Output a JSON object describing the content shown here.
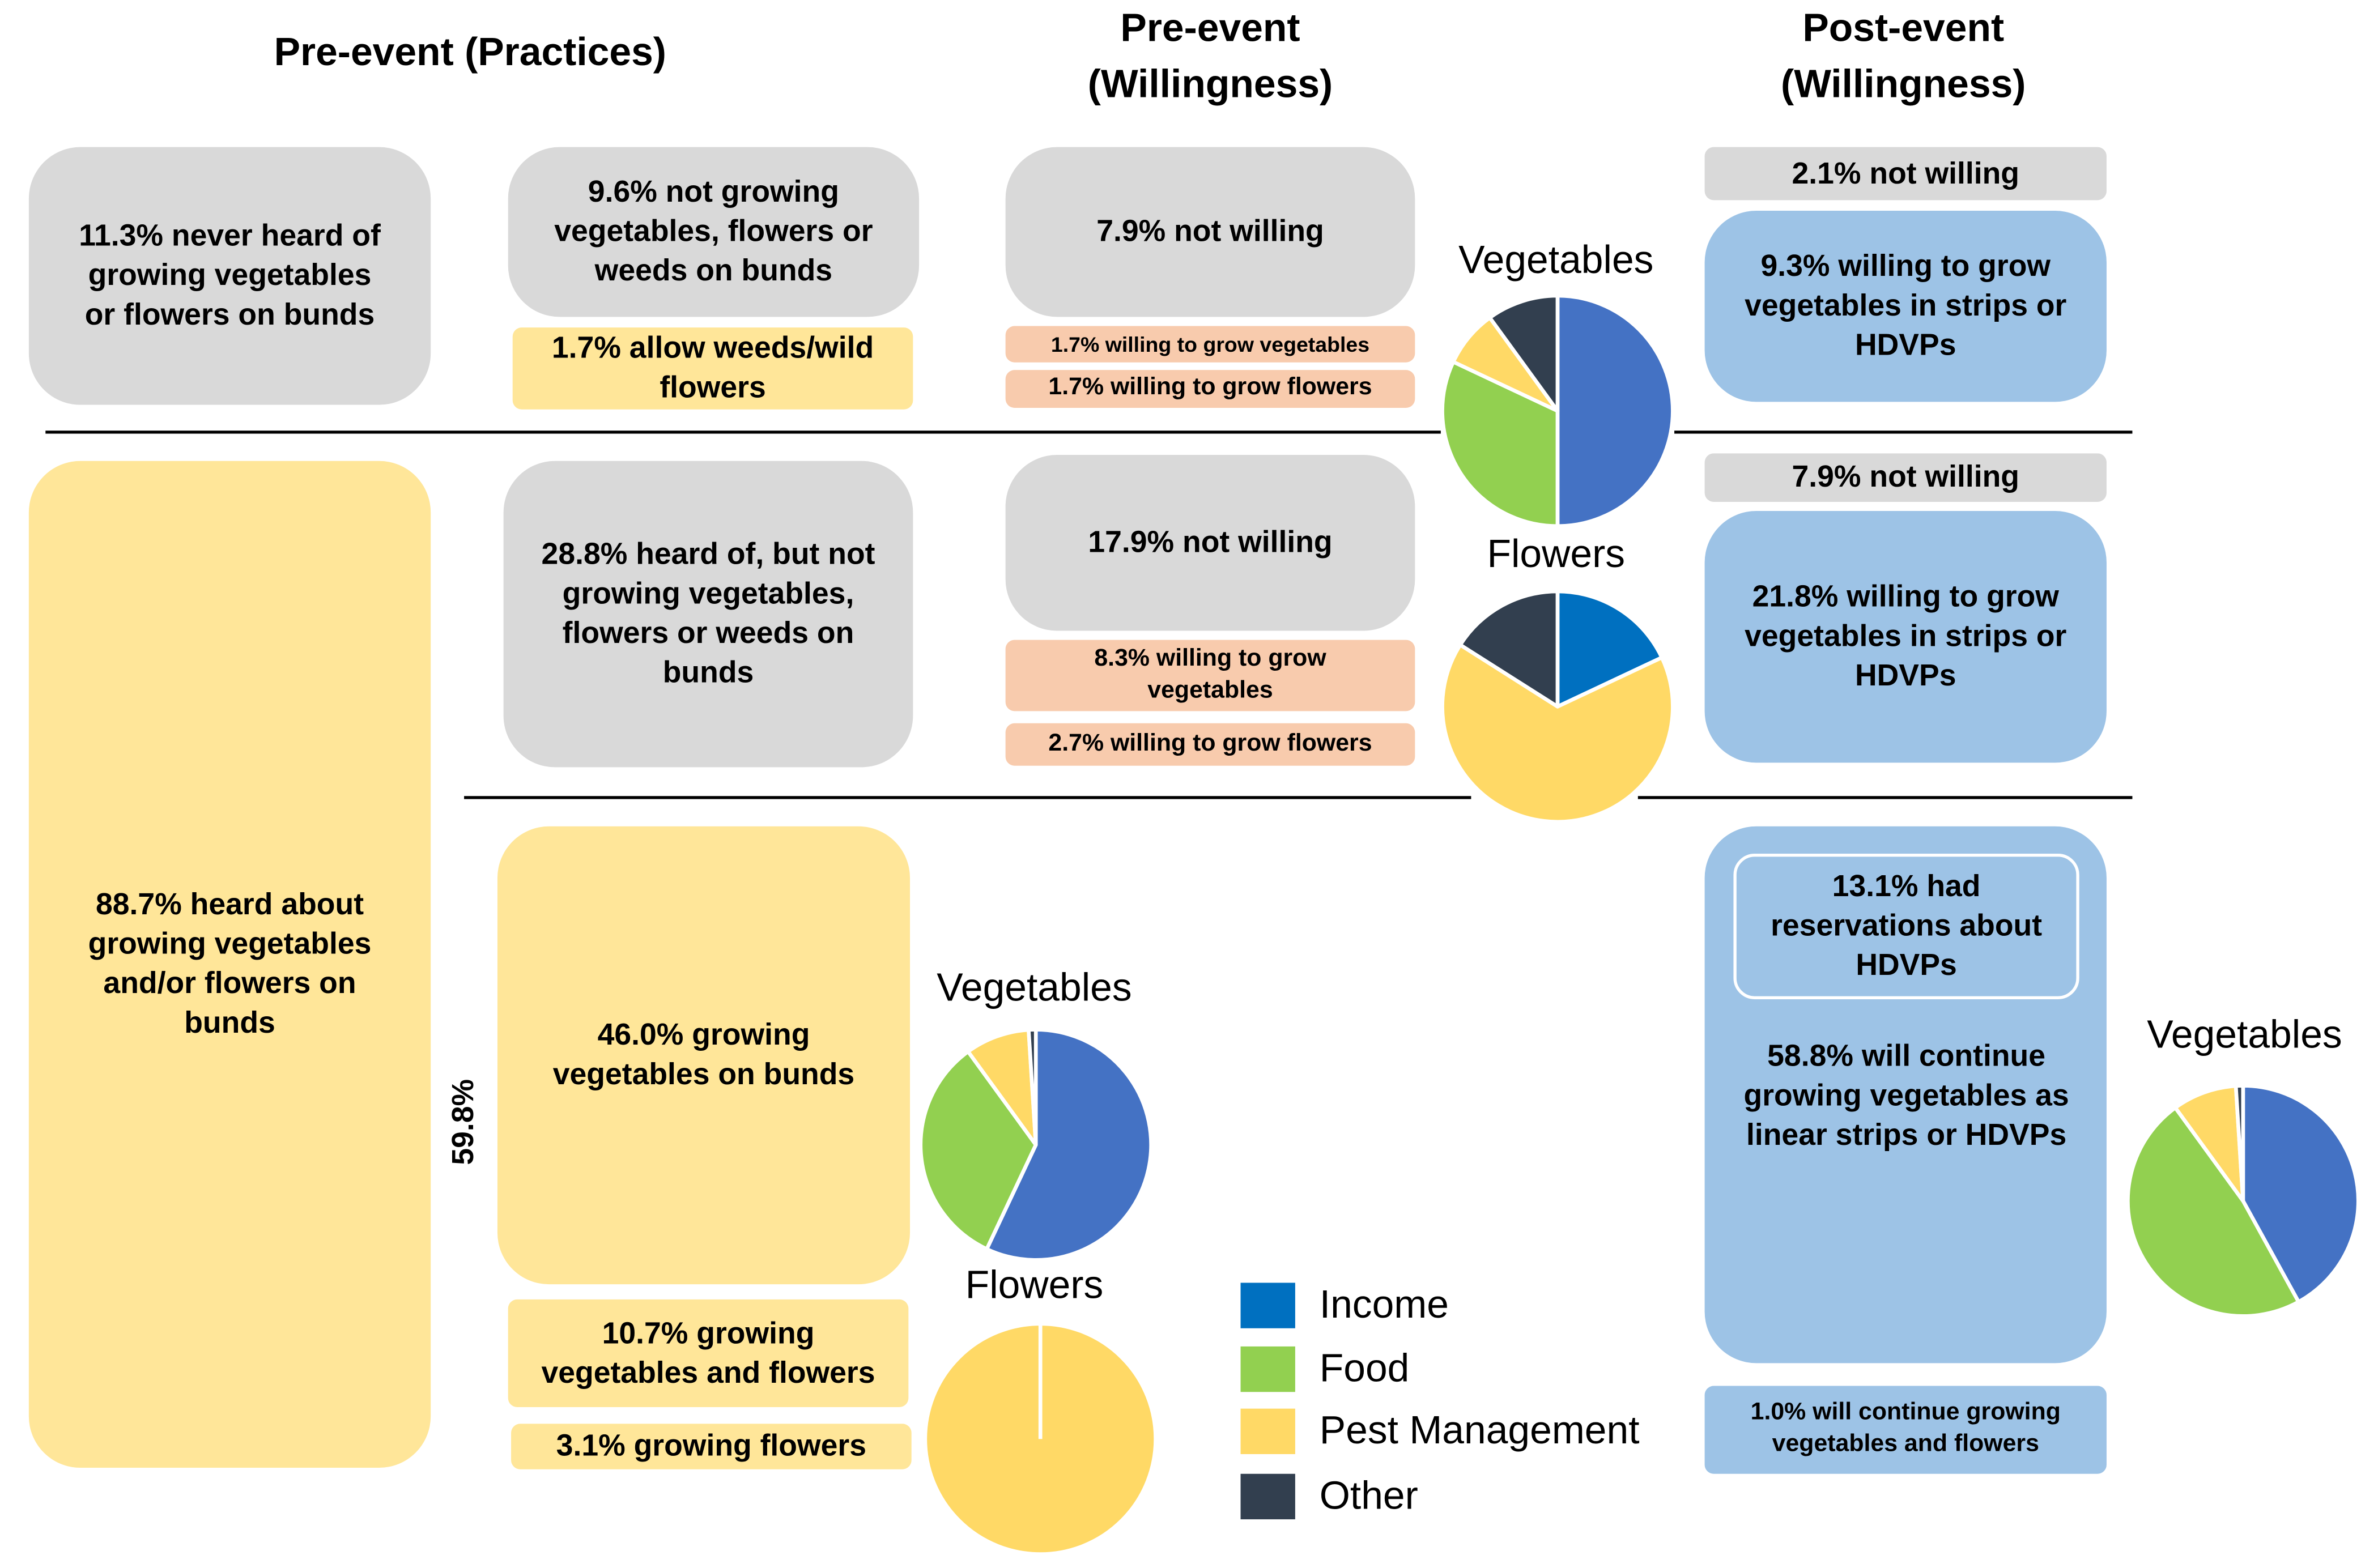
{
  "headers": {
    "practices": "Pre-event (Practices)",
    "pre_willingness": "Pre-event\n(Willingness)",
    "post_willingness": "Post-event\n(Willingness)"
  },
  "practices": {
    "never_heard": "11.3% never heard of growing vegetables or flowers on bunds",
    "heard_about": "88.7% heard about growing vegetables and/or flowers on bunds",
    "not_growing": "9.6% not growing vegetables, flowers or weeds on bunds",
    "allow_weeds": "1.7% allow weeds/wild flowers",
    "heard_not_growing": "28.8% heard of, but not growing vegetables, flowers or weeds on bunds",
    "growing_veg": "46.0% growing vegetables on bunds",
    "growing_veg_flowers": "10.7% growing vegetables and flowers",
    "growing_flowers": "3.1% growing flowers",
    "side_label": "59.8%"
  },
  "pre_willingness": {
    "not_willing_1": "7.9% not willing",
    "willing_veg_1": "1.7% willing to grow vegetables",
    "willing_flowers_1": "1.7% willing to grow flowers",
    "not_willing_2": "17.9% not willing",
    "willing_veg_2": "8.3% willing to grow vegetables",
    "willing_flowers_2": "2.7% willing to grow flowers"
  },
  "post_willingness": {
    "not_willing_1": "2.1% not willing",
    "willing_strips_1": "9.3% willing to grow vegetables in strips or HDVPs",
    "not_willing_2": "7.9% not willing",
    "willing_strips_2": "21.8% willing to grow vegetables in strips or HDVPs",
    "reservations": "13.1% had reservations about HDVPs",
    "continue_veg": "58.8% will continue growing vegetables as linear strips or HDVPs",
    "continue_veg_flowers": "1.0% will continue growing vegetables and flowers"
  },
  "colors": {
    "income": "#0070c0",
    "food": "#92d050",
    "pest": "#ffd966",
    "other": "#323f4f",
    "income_alt": "#4472c4"
  },
  "legend": [
    {
      "label": "Income",
      "color": "#0070c0"
    },
    {
      "label": "Food",
      "color": "#92d050"
    },
    {
      "label": "Pest Management",
      "color": "#ffd966"
    },
    {
      "label": "Other",
      "color": "#323f4f"
    }
  ],
  "chart_data": [
    {
      "type": "pie",
      "title": "Vegetables",
      "group": "pre-event willingness",
      "labels": [
        "Income",
        "Food",
        "Pest Management",
        "Other"
      ],
      "values": [
        50,
        32,
        8,
        10
      ],
      "colors": [
        "#4472c4",
        "#92d050",
        "#ffd966",
        "#323f4f"
      ]
    },
    {
      "type": "pie",
      "title": "Flowers",
      "group": "pre-event willingness",
      "labels": [
        "Income",
        "Food",
        "Pest Management",
        "Other"
      ],
      "values": [
        18,
        0,
        66,
        16
      ],
      "colors": [
        "#0070c0",
        "#92d050",
        "#ffd966",
        "#323f4f"
      ]
    },
    {
      "type": "pie",
      "title": "Vegetables",
      "group": "pre-event practices",
      "labels": [
        "Income",
        "Food",
        "Pest Management",
        "Other"
      ],
      "values": [
        57,
        33,
        9,
        1
      ],
      "colors": [
        "#4472c4",
        "#92d050",
        "#ffd966",
        "#323f4f"
      ]
    },
    {
      "type": "pie",
      "title": "Flowers",
      "group": "pre-event practices",
      "labels": [
        "Income",
        "Food",
        "Pest Management",
        "Other"
      ],
      "values": [
        0,
        0,
        100,
        0
      ],
      "colors": [
        "#0070c0",
        "#92d050",
        "#ffd966",
        "#323f4f"
      ]
    },
    {
      "type": "pie",
      "title": "Vegetables",
      "group": "post-event willingness",
      "labels": [
        "Income",
        "Food",
        "Pest Management",
        "Other"
      ],
      "values": [
        42,
        48,
        9,
        1
      ],
      "colors": [
        "#4472c4",
        "#92d050",
        "#ffd966",
        "#323f4f"
      ]
    }
  ]
}
